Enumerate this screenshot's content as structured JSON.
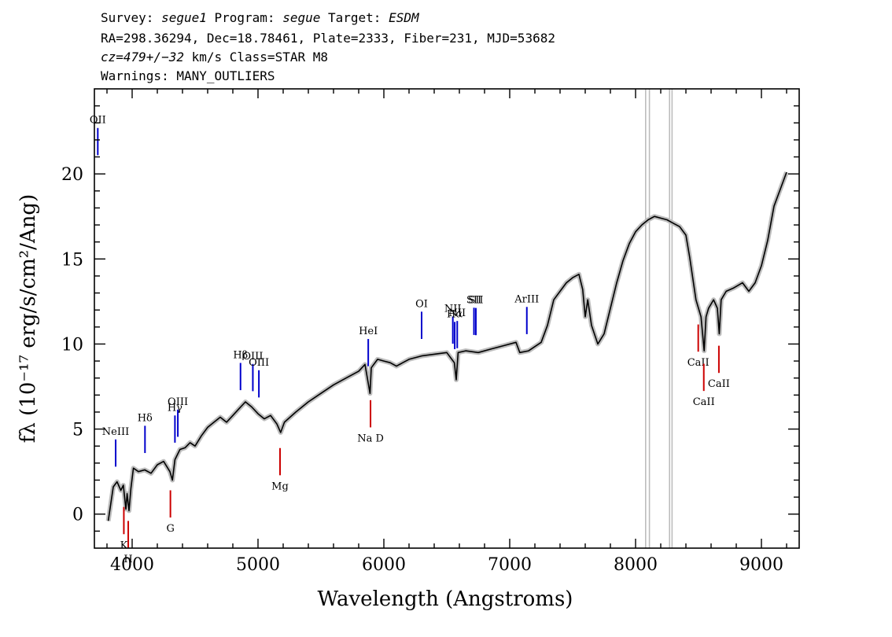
{
  "header": {
    "line1": {
      "survey_label": "Survey: ",
      "survey": "segue1",
      "program_label": " Program: ",
      "program": "segue",
      "target_label": " Target: ",
      "target": "ESDM"
    },
    "line2": "RA=298.36294, Dec=18.78461, Plate=2333, Fiber=231, MJD=53682",
    "line3": {
      "cz": "cz=479+/−32",
      "rest": " km/s Class=STAR M8"
    },
    "line4": "Warnings: MANY_OUTLIERS"
  },
  "colors": {
    "spectrum": "#000000",
    "error_band": "#bdbdbd",
    "emission": "#0000cc",
    "absorption": "#cc0000",
    "sky": "#bdbdbd"
  },
  "chart_data": {
    "type": "line",
    "xlabel": "Wavelength (Angstroms)",
    "ylabel": "fλ (10⁻¹⁷ erg/s/cm²/Ang)",
    "xlim": [
      3700,
      9300
    ],
    "ylim": [
      -2,
      25
    ],
    "x_ticks": [
      4000,
      5000,
      6000,
      7000,
      8000,
      9000
    ],
    "y_ticks": [
      0,
      5,
      10,
      15,
      20
    ],
    "grid": false,
    "series": [
      {
        "points": [
          [
            3810,
            -0.4
          ],
          [
            3850,
            1.6
          ],
          [
            3880,
            1.9
          ],
          [
            3910,
            1.4
          ],
          [
            3930,
            1.7
          ],
          [
            3950,
            0.3
          ],
          [
            3960,
            1.2
          ],
          [
            3975,
            0.2
          ],
          [
            3990,
            1.5
          ],
          [
            4010,
            2.7
          ],
          [
            4050,
            2.5
          ],
          [
            4100,
            2.6
          ],
          [
            4150,
            2.4
          ],
          [
            4200,
            2.9
          ],
          [
            4250,
            3.1
          ],
          [
            4300,
            2.5
          ],
          [
            4320,
            2.0
          ],
          [
            4340,
            3.2
          ],
          [
            4380,
            3.8
          ],
          [
            4420,
            3.9
          ],
          [
            4460,
            4.2
          ],
          [
            4500,
            4.0
          ],
          [
            4550,
            4.6
          ],
          [
            4600,
            5.1
          ],
          [
            4650,
            5.4
          ],
          [
            4700,
            5.7
          ],
          [
            4750,
            5.4
          ],
          [
            4800,
            5.8
          ],
          [
            4850,
            6.2
          ],
          [
            4900,
            6.6
          ],
          [
            4950,
            6.3
          ],
          [
            5000,
            5.9
          ],
          [
            5050,
            5.6
          ],
          [
            5100,
            5.8
          ],
          [
            5150,
            5.3
          ],
          [
            5180,
            4.8
          ],
          [
            5210,
            5.4
          ],
          [
            5300,
            6.0
          ],
          [
            5400,
            6.6
          ],
          [
            5500,
            7.1
          ],
          [
            5600,
            7.6
          ],
          [
            5700,
            8.0
          ],
          [
            5800,
            8.4
          ],
          [
            5850,
            8.8
          ],
          [
            5890,
            7.1
          ],
          [
            5900,
            8.6
          ],
          [
            5950,
            9.1
          ],
          [
            6000,
            9.0
          ],
          [
            6050,
            8.9
          ],
          [
            6100,
            8.7
          ],
          [
            6150,
            8.9
          ],
          [
            6200,
            9.1
          ],
          [
            6300,
            9.3
          ],
          [
            6400,
            9.4
          ],
          [
            6500,
            9.5
          ],
          [
            6560,
            8.9
          ],
          [
            6575,
            7.9
          ],
          [
            6590,
            9.5
          ],
          [
            6650,
            9.6
          ],
          [
            6750,
            9.5
          ],
          [
            6850,
            9.7
          ],
          [
            6950,
            9.9
          ],
          [
            7050,
            10.1
          ],
          [
            7080,
            9.5
          ],
          [
            7150,
            9.6
          ],
          [
            7250,
            10.1
          ],
          [
            7300,
            11.1
          ],
          [
            7350,
            12.6
          ],
          [
            7400,
            13.1
          ],
          [
            7450,
            13.6
          ],
          [
            7500,
            13.9
          ],
          [
            7550,
            14.1
          ],
          [
            7580,
            13.2
          ],
          [
            7600,
            11.6
          ],
          [
            7620,
            12.6
          ],
          [
            7650,
            11.1
          ],
          [
            7700,
            10.0
          ],
          [
            7750,
            10.6
          ],
          [
            7800,
            12.1
          ],
          [
            7850,
            13.6
          ],
          [
            7900,
            14.9
          ],
          [
            7950,
            15.9
          ],
          [
            8000,
            16.6
          ],
          [
            8050,
            17.0
          ],
          [
            8100,
            17.3
          ],
          [
            8150,
            17.5
          ],
          [
            8200,
            17.4
          ],
          [
            8250,
            17.3
          ],
          [
            8300,
            17.1
          ],
          [
            8350,
            16.9
          ],
          [
            8400,
            16.4
          ],
          [
            8430,
            15.1
          ],
          [
            8460,
            13.6
          ],
          [
            8480,
            12.6
          ],
          [
            8500,
            12.1
          ],
          [
            8520,
            11.6
          ],
          [
            8545,
            9.6
          ],
          [
            8560,
            11.6
          ],
          [
            8580,
            12.1
          ],
          [
            8620,
            12.6
          ],
          [
            8650,
            12.1
          ],
          [
            8665,
            10.6
          ],
          [
            8680,
            12.6
          ],
          [
            8720,
            13.1
          ],
          [
            8780,
            13.3
          ],
          [
            8850,
            13.6
          ],
          [
            8900,
            13.1
          ],
          [
            8950,
            13.6
          ],
          [
            9000,
            14.6
          ],
          [
            9050,
            16.1
          ],
          [
            9100,
            18.1
          ],
          [
            9150,
            19.1
          ],
          [
            9200,
            20.1
          ]
        ]
      }
    ],
    "sky_lines": [
      8080,
      8110,
      8270,
      8290
    ],
    "emission_lines": [
      {
        "label": "OII",
        "x": 3727
      },
      {
        "label": "NeIII",
        "x": 3869
      },
      {
        "label": "Hδ",
        "x": 4102
      },
      {
        "label": "Hγ",
        "x": 4340
      },
      {
        "label": "OIII",
        "x": 4363
      },
      {
        "label": "Hβ",
        "x": 4861
      },
      {
        "label": "OIII",
        "x": 4959
      },
      {
        "label": "OIII",
        "x": 5007
      },
      {
        "label": "HeI",
        "x": 5876
      },
      {
        "label": "OI",
        "x": 6300
      },
      {
        "label": "NII",
        "x": 6548
      },
      {
        "label": "Hα",
        "x": 6563
      },
      {
        "label": "NII",
        "x": 6583
      },
      {
        "label": "SII",
        "x": 6716
      },
      {
        "label": "SII",
        "x": 6731
      },
      {
        "label": "ArIII",
        "x": 7136
      }
    ],
    "absorption_lines": [
      {
        "label": "K",
        "x": 3934
      },
      {
        "label": "H",
        "x": 3969
      },
      {
        "label": "G",
        "x": 4304
      },
      {
        "label": "Mg",
        "x": 5175
      },
      {
        "label": "Na D",
        "x": 5894
      },
      {
        "label": "CaII",
        "x": 8498
      },
      {
        "label": "CaII",
        "x": 8542
      },
      {
        "label": "CaII",
        "x": 8662
      }
    ]
  }
}
